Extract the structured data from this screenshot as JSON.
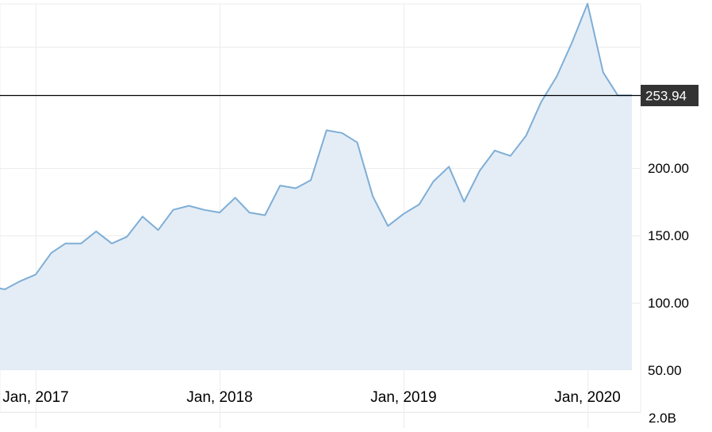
{
  "chart_data": {
    "type": "area",
    "title": "",
    "xlabel": "",
    "ylabel": "",
    "x_tick_labels": [
      "Jan, 2017",
      "Jan, 2018",
      "Jan, 2019",
      "Jan, 2020"
    ],
    "y_tick_labels": [
      "200.00",
      "150.00",
      "100.00",
      "50.00"
    ],
    "y_ticks": [
      200,
      150,
      100,
      50
    ],
    "volume_label": "2.0B",
    "current_price_label": "253.94",
    "current_price": 253.94,
    "ylim": [
      50,
      322
    ],
    "grid": true,
    "series": [
      {
        "x": [
          "2016-10-01",
          "2016-11-01",
          "2016-12-01",
          "2017-01-01",
          "2017-02-01",
          "2017-03-01",
          "2017-04-01",
          "2017-05-01",
          "2017-06-01",
          "2017-07-01",
          "2017-08-01",
          "2017-09-01",
          "2017-10-01",
          "2017-11-01",
          "2017-12-01",
          "2018-01-01",
          "2018-02-01",
          "2018-03-01",
          "2018-04-01",
          "2018-05-01",
          "2018-06-01",
          "2018-07-01",
          "2018-08-01",
          "2018-09-01",
          "2018-10-01",
          "2018-11-01",
          "2018-12-01",
          "2019-01-01",
          "2019-02-01",
          "2019-03-01",
          "2019-04-01",
          "2019-05-01",
          "2019-06-01",
          "2019-07-01",
          "2019-08-01",
          "2019-09-01",
          "2019-10-01",
          "2019-11-01",
          "2019-12-01",
          "2020-01-01",
          "2020-02-01",
          "2020-03-01",
          "2020-04-01"
        ],
        "values": [
          112,
          110,
          116,
          121,
          137,
          144,
          144,
          153,
          144,
          149,
          164,
          154,
          169,
          172,
          169,
          167,
          178,
          167,
          165,
          187,
          185,
          191,
          228,
          226,
          219,
          179,
          157,
          166,
          173,
          190,
          201,
          175,
          198,
          213,
          209,
          224,
          249,
          268,
          293,
          322,
          271,
          254,
          254
        ]
      }
    ],
    "colors": {
      "line": "#7eaed6",
      "fill": "#e4edf6",
      "grid": "#ececec",
      "price_line": "#000000",
      "price_label_bg": "#333333",
      "price_label_text": "#ffffff",
      "axis_text": "#000000"
    }
  }
}
